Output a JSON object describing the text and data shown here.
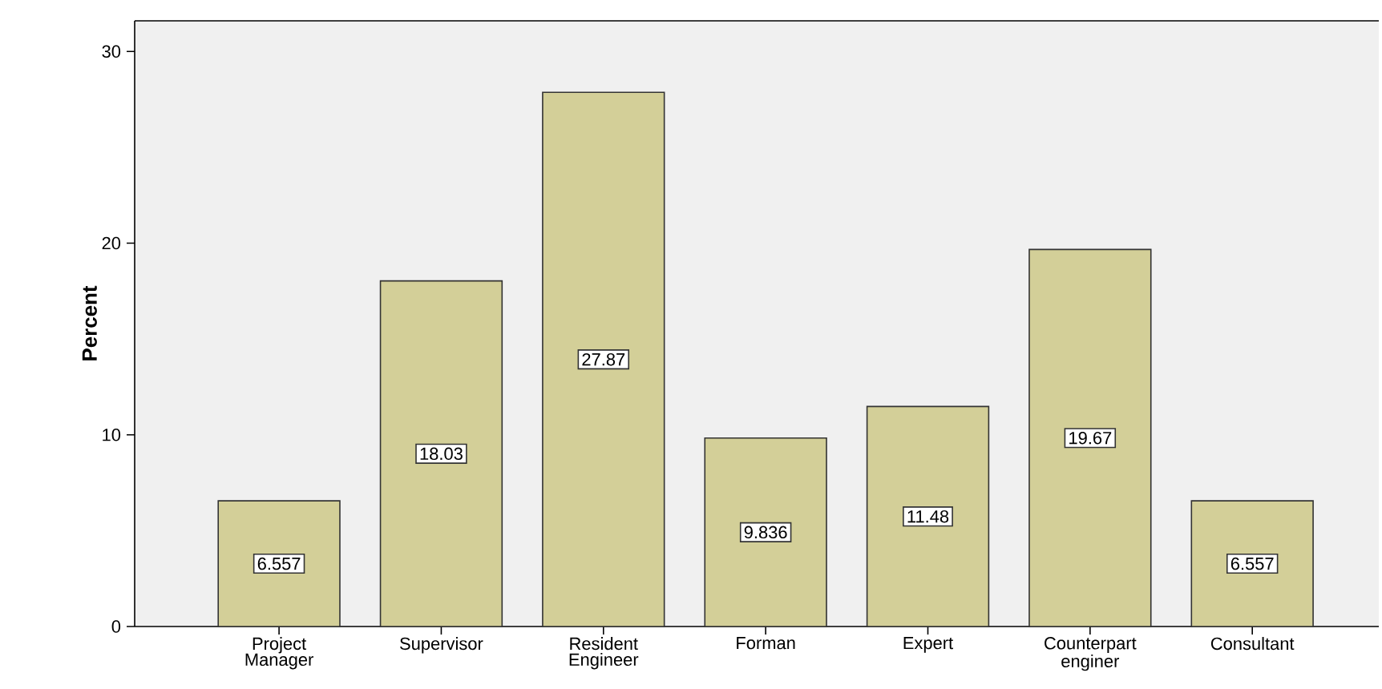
{
  "chart_data": {
    "type": "bar",
    "ylabel": "Percent",
    "categories": [
      "Project Manager",
      "Supervisor",
      "Resident Engineer",
      "Forman",
      "Expert",
      "Counterpart enginer",
      "Consultant"
    ],
    "values": [
      6.557,
      18.03,
      27.87,
      9.836,
      11.48,
      19.67,
      6.557
    ],
    "value_labels": [
      "6.557",
      "18.03",
      "27.87",
      "9.836",
      "11.48",
      "19.67",
      "6.557"
    ],
    "color": "#d3cf98",
    "ylim": [
      0,
      31.6
    ],
    "yticks": [
      0,
      10,
      20,
      30
    ]
  }
}
